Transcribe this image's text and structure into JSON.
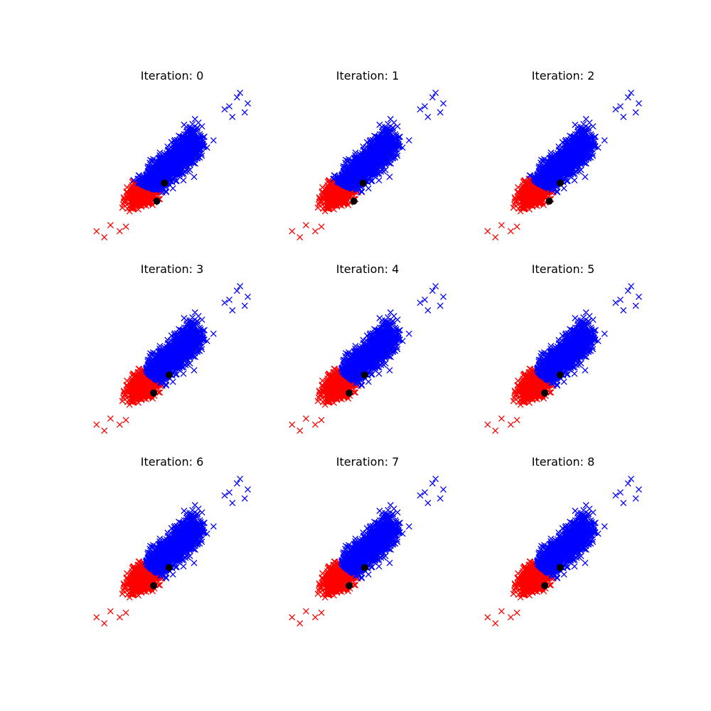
{
  "colors": {
    "cluster_0": "#ff0000",
    "cluster_1": "#0000ff",
    "centroid": "#000000",
    "background": "#ffffff"
  },
  "markers": {
    "points": "x",
    "centroids": "filled-circle"
  },
  "chart_data": [
    {
      "type": "scatter",
      "title": "Iteration: 0",
      "axes_visible": false,
      "grid": false,
      "legend": "none",
      "centroids": [
        {
          "x": 0.2,
          "y": -1.3
        },
        {
          "x": 0.7,
          "y": -0.1
        }
      ],
      "boundary_offset": -0.5
    },
    {
      "type": "scatter",
      "title": "Iteration: 1",
      "axes_visible": false,
      "grid": false,
      "legend": "none",
      "centroids": [
        {
          "x": 0.3,
          "y": -1.3
        },
        {
          "x": 0.9,
          "y": -0.1
        }
      ],
      "boundary_offset": -0.3
    },
    {
      "type": "scatter",
      "title": "Iteration: 2",
      "axes_visible": false,
      "grid": false,
      "legend": "none",
      "centroids": [
        {
          "x": 0.3,
          "y": -1.3
        },
        {
          "x": 1.0,
          "y": -0.1
        }
      ],
      "boundary_offset": -0.2
    },
    {
      "type": "scatter",
      "title": "Iteration: 3",
      "axes_visible": false,
      "grid": false,
      "legend": "none",
      "centroids": [
        {
          "x": 0.0,
          "y": -1.2
        },
        {
          "x": 1.0,
          "y": 0.0
        }
      ],
      "boundary_offset": 0.0
    },
    {
      "type": "scatter",
      "title": "Iteration: 4",
      "axes_visible": false,
      "grid": false,
      "legend": "none",
      "centroids": [
        {
          "x": 0.0,
          "y": -1.2
        },
        {
          "x": 1.0,
          "y": 0.0
        }
      ],
      "boundary_offset": 0.0
    },
    {
      "type": "scatter",
      "title": "Iteration: 5",
      "axes_visible": false,
      "grid": false,
      "legend": "none",
      "centroids": [
        {
          "x": 0.0,
          "y": -1.2
        },
        {
          "x": 1.0,
          "y": 0.0
        }
      ],
      "boundary_offset": 0.0
    },
    {
      "type": "scatter",
      "title": "Iteration: 6",
      "axes_visible": false,
      "grid": false,
      "legend": "none",
      "centroids": [
        {
          "x": 0.0,
          "y": -1.2
        },
        {
          "x": 1.0,
          "y": 0.0
        }
      ],
      "boundary_offset": 0.0
    },
    {
      "type": "scatter",
      "title": "Iteration: 7",
      "axes_visible": false,
      "grid": false,
      "legend": "none",
      "centroids": [
        {
          "x": 0.0,
          "y": -1.2
        },
        {
          "x": 1.0,
          "y": 0.0
        }
      ],
      "boundary_offset": 0.0
    },
    {
      "type": "scatter",
      "title": "Iteration: 8",
      "axes_visible": false,
      "grid": false,
      "legend": "none",
      "centroids": [
        {
          "x": 0.0,
          "y": -1.2
        },
        {
          "x": 1.0,
          "y": 0.0
        }
      ],
      "boundary_offset": 0.0
    }
  ]
}
